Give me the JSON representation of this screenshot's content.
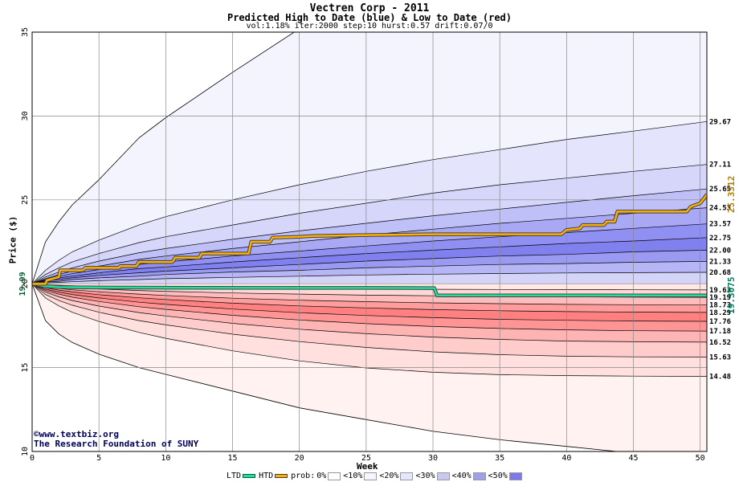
{
  "title": "Vectren Corp - 2011",
  "subtitle": "Predicted High to Date (blue) &  Low to Date (red)",
  "params": "vol:1.18% iter:2000 step:10 hurst:0.57 drift:0.07/0",
  "credit": {
    "line1": "©www.textbiz.org",
    "line2": "The Research Foundation of SUNY"
  },
  "chart_data": {
    "type": "area",
    "xlabel": "Week",
    "ylabel": "Price ($)",
    "xlim": [
      0,
      50.5
    ],
    "ylim": [
      10,
      35
    ],
    "xticks": [
      0,
      5,
      10,
      15,
      20,
      25,
      30,
      35,
      40,
      45,
      50
    ],
    "yticks": [
      10,
      15,
      20,
      25,
      30,
      35
    ],
    "grid": true,
    "start_price": 19.99,
    "start_label": "19.99",
    "colors": {
      "htd_line": "#ffb000",
      "ltd_line": "#20e0a0",
      "htd_label": "#b08000",
      "ltd_label": "#008060"
    },
    "current_values": [
      {
        "series": "HTD",
        "label": "25.3312",
        "value": 25.3312
      },
      {
        "series": "LTD",
        "label": "19.3075",
        "value": 19.3075
      }
    ],
    "quantile_bands": {
      "x": [
        0,
        1,
        2,
        3,
        5,
        8,
        10,
        15,
        20,
        25,
        30,
        35,
        40,
        45,
        50.5
      ],
      "high_outer": [
        19.99,
        22.5,
        23.7,
        24.7,
        26.2,
        28.7,
        29.9,
        32.6,
        35.2,
        37.4,
        39.4,
        41.2,
        43.0,
        44.6,
        46.2
      ],
      "low_outer": [
        19.99,
        17.8,
        17.0,
        16.5,
        15.8,
        15.0,
        14.6,
        13.6,
        12.6,
        11.9,
        11.2,
        10.7,
        10.3,
        9.9,
        9.6
      ]
    },
    "htd_envelopes": [
      {
        "label": "29.67",
        "values": [
          19.99,
          20.8,
          21.4,
          21.9,
          22.6,
          23.5,
          24.0,
          25.0,
          25.9,
          26.7,
          27.4,
          28.0,
          28.6,
          29.1,
          29.67
        ]
      },
      {
        "label": "27.11",
        "values": [
          19.99,
          20.55,
          20.95,
          21.3,
          21.8,
          22.45,
          22.8,
          23.5,
          24.2,
          24.8,
          25.4,
          25.9,
          26.3,
          26.7,
          27.11
        ]
      },
      {
        "label": "25.65",
        "values": [
          19.99,
          20.4,
          20.7,
          20.95,
          21.35,
          21.85,
          22.1,
          22.65,
          23.15,
          23.6,
          24.05,
          24.45,
          24.85,
          25.25,
          25.65
        ]
      },
      {
        "label": "24.53",
        "values": [
          19.99,
          20.3,
          20.55,
          20.75,
          21.05,
          21.45,
          21.65,
          22.1,
          22.5,
          22.9,
          23.25,
          23.6,
          23.9,
          24.2,
          24.53
        ]
      },
      {
        "label": "23.57",
        "values": [
          19.99,
          20.25,
          20.45,
          20.6,
          20.85,
          21.15,
          21.3,
          21.65,
          21.95,
          22.25,
          22.55,
          22.8,
          23.05,
          23.3,
          23.57
        ]
      },
      {
        "label": "22.75",
        "values": [
          19.99,
          20.2,
          20.35,
          20.45,
          20.65,
          20.9,
          21.0,
          21.3,
          21.55,
          21.8,
          22.0,
          22.2,
          22.4,
          22.55,
          22.75
        ]
      },
      {
        "label": "22.00",
        "values": [
          19.99,
          20.15,
          20.25,
          20.35,
          20.5,
          20.65,
          20.75,
          20.95,
          21.15,
          21.35,
          21.5,
          21.65,
          21.75,
          21.9,
          22.0
        ]
      },
      {
        "label": "21.33",
        "values": [
          19.99,
          20.1,
          20.15,
          20.25,
          20.35,
          20.45,
          20.55,
          20.7,
          20.8,
          20.95,
          21.05,
          21.15,
          21.2,
          21.28,
          21.33
        ]
      },
      {
        "label": "20.68",
        "values": [
          19.99,
          20.05,
          20.08,
          20.12,
          20.18,
          20.25,
          20.3,
          20.38,
          20.45,
          20.52,
          20.57,
          20.61,
          20.64,
          20.66,
          20.68
        ]
      }
    ],
    "ltd_envelopes": [
      {
        "label": "19.63",
        "values": [
          19.99,
          19.94,
          19.91,
          19.88,
          19.84,
          19.8,
          19.78,
          19.74,
          19.71,
          19.69,
          19.67,
          19.66,
          19.65,
          19.64,
          19.63
        ]
      },
      {
        "label": "19.19",
        "values": [
          19.99,
          19.89,
          19.82,
          19.77,
          19.69,
          19.6,
          19.55,
          19.45,
          19.38,
          19.32,
          19.28,
          19.25,
          19.22,
          19.2,
          19.19
        ]
      },
      {
        "label": "18.73",
        "values": [
          19.99,
          19.82,
          19.72,
          19.64,
          19.52,
          19.38,
          19.3,
          19.14,
          19.02,
          18.93,
          18.86,
          18.81,
          18.77,
          18.75,
          18.73
        ]
      },
      {
        "label": "18.29",
        "values": [
          19.99,
          19.76,
          19.62,
          19.51,
          19.35,
          19.16,
          19.06,
          18.84,
          18.68,
          18.56,
          18.46,
          18.39,
          18.34,
          18.31,
          18.29
        ]
      },
      {
        "label": "17.76",
        "values": [
          19.99,
          19.68,
          19.5,
          19.36,
          19.15,
          18.9,
          18.77,
          18.49,
          18.27,
          18.11,
          17.98,
          17.88,
          17.82,
          17.78,
          17.76
        ]
      },
      {
        "label": "17.18",
        "values": [
          19.99,
          19.6,
          19.38,
          19.2,
          18.94,
          18.63,
          18.47,
          18.12,
          17.84,
          17.62,
          17.45,
          17.33,
          17.25,
          17.2,
          17.18
        ]
      },
      {
        "label": "16.52",
        "values": [
          19.99,
          19.5,
          19.22,
          19.0,
          18.67,
          18.28,
          18.08,
          17.64,
          17.29,
          17.02,
          16.82,
          16.68,
          16.58,
          16.54,
          16.52
        ]
      },
      {
        "label": "15.63",
        "values": [
          19.99,
          19.36,
          19.0,
          18.72,
          18.3,
          17.8,
          17.55,
          16.99,
          16.55,
          16.2,
          15.94,
          15.77,
          15.68,
          15.64,
          15.63
        ]
      },
      {
        "label": "14.48",
        "values": [
          19.99,
          19.15,
          18.68,
          18.3,
          17.75,
          17.1,
          16.75,
          16.0,
          15.4,
          14.98,
          14.72,
          14.58,
          14.52,
          14.49,
          14.48
        ]
      }
    ],
    "htd_series": {
      "name": "HTD",
      "x": [
        0,
        1,
        1.1,
        2,
        2.1,
        3.8,
        4.0,
        6.5,
        6.6,
        7.8,
        8.0,
        10.5,
        10.7,
        12.5,
        12.7,
        16.2,
        16.4,
        17.8,
        18.0,
        20.0,
        21.0,
        25.0,
        30.0,
        35.0,
        39.6,
        40.0,
        41.0,
        41.2,
        42.8,
        43.0,
        43.6,
        43.8,
        49.0,
        49.3,
        50.0,
        50.3,
        50.5
      ],
      "y": [
        19.99,
        19.99,
        20.2,
        20.4,
        20.8,
        20.8,
        20.95,
        20.95,
        21.05,
        21.05,
        21.3,
        21.3,
        21.55,
        21.55,
        21.8,
        21.8,
        22.5,
        22.5,
        22.75,
        22.8,
        22.85,
        22.9,
        22.95,
        22.95,
        22.95,
        23.2,
        23.3,
        23.5,
        23.5,
        23.7,
        23.7,
        24.3,
        24.3,
        24.6,
        24.8,
        25.1,
        25.3312
      ]
    },
    "ltd_series": {
      "name": "LTD",
      "x": [
        0,
        1,
        2,
        4,
        8,
        12,
        20,
        25,
        29.9,
        30.1,
        30.3,
        35,
        40,
        45,
        50.5
      ],
      "y": [
        19.99,
        19.85,
        19.8,
        19.78,
        19.77,
        19.76,
        19.75,
        19.75,
        19.74,
        19.74,
        19.3075,
        19.3075,
        19.3075,
        19.3075,
        19.3075
      ]
    }
  },
  "legend": {
    "ltd": "LTD",
    "htd": "HTD",
    "prob_prefix": "prob:",
    "items": [
      "0%",
      "<10%",
      "<20%",
      "<30%",
      "<40%",
      "<50%"
    ],
    "item_colors": [
      "#ffffff",
      "#f6f6ff",
      "#e6e6ff",
      "#c8c8f0",
      "#a0a0e8",
      "#7a7ae8"
    ]
  }
}
